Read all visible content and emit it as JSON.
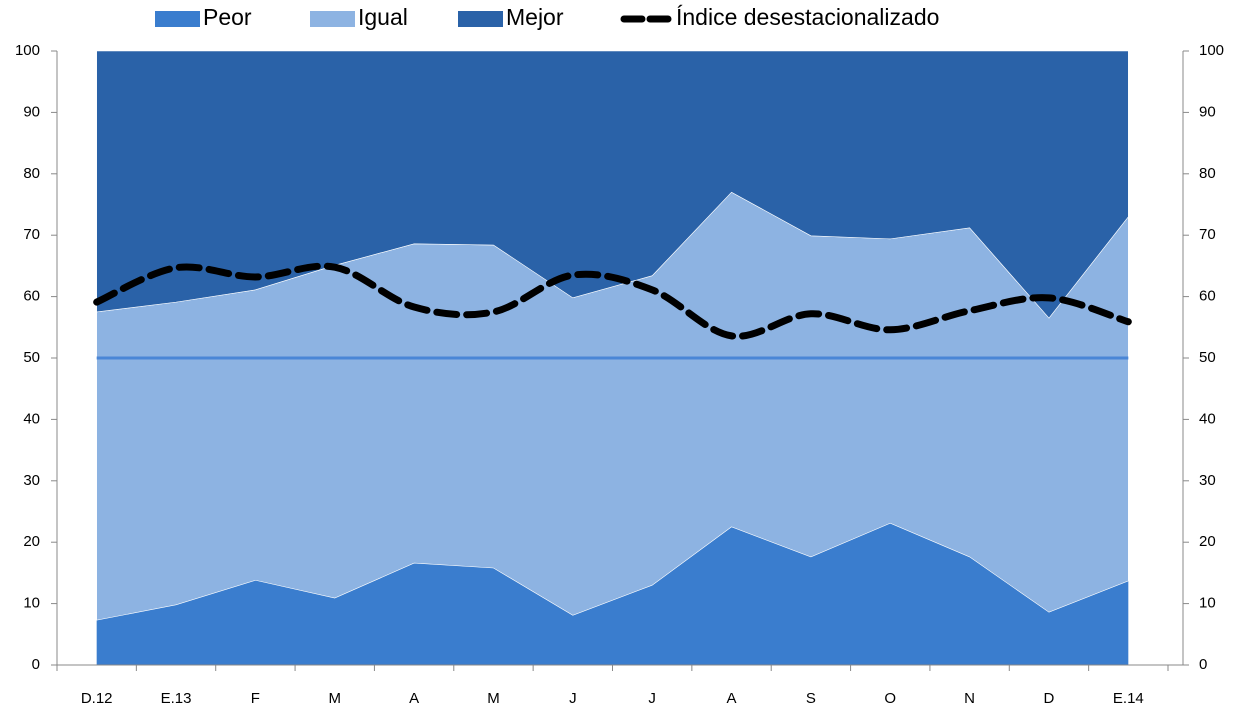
{
  "chart_data": {
    "type": "area",
    "stacked": true,
    "categories": [
      "D.12",
      "E.13",
      "F",
      "M",
      "A",
      "M",
      "J",
      "J",
      "A",
      "S",
      "O",
      "N",
      "D",
      "E.14"
    ],
    "series": [
      {
        "name": "Peor",
        "color": "#3a7dce",
        "values": [
          7.3,
          9.8,
          13.8,
          10.9,
          16.6,
          15.8,
          8.1,
          13.0,
          22.5,
          17.6,
          23.1,
          17.6,
          8.6,
          13.7
        ]
      },
      {
        "name": "Igual",
        "color": "#8db3e2",
        "values": [
          50.2,
          49.3,
          47.3,
          54.2,
          52.0,
          52.6,
          51.7,
          50.4,
          54.5,
          52.3,
          46.3,
          53.6,
          47.9,
          59.3
        ]
      },
      {
        "name": "Mejor",
        "color": "#2a62a8",
        "values": [
          42.5,
          40.9,
          38.9,
          34.9,
          31.4,
          31.6,
          40.2,
          36.6,
          23.0,
          30.1,
          30.6,
          28.8,
          43.5,
          27.0
        ]
      },
      {
        "name": "Índice desestacionalizado",
        "color": "#000000",
        "type": "line",
        "dashed": true,
        "axis": "y2",
        "values": [
          59.1,
          64.7,
          63.2,
          64.8,
          58.3,
          57.5,
          63.5,
          61.1,
          53.6,
          57.2,
          54.6,
          57.7,
          59.8,
          55.9
        ]
      }
    ],
    "hline": {
      "value": 50,
      "color": "#4a86d6"
    },
    "ylim": [
      0,
      100
    ],
    "yticks": [
      0,
      10,
      20,
      30,
      40,
      50,
      60,
      70,
      80,
      90,
      100
    ],
    "y2lim": [
      0,
      100
    ],
    "y2ticks": [
      0,
      10,
      20,
      30,
      40,
      50,
      60,
      70,
      80,
      90,
      100
    ],
    "legend": "top"
  }
}
